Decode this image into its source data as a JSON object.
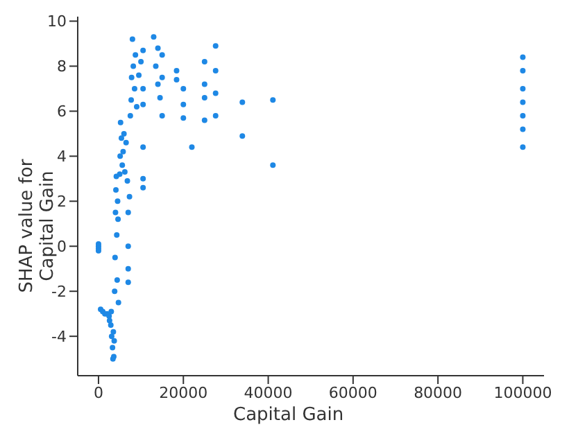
{
  "chart_data": {
    "type": "scatter",
    "xlabel": "Capital Gain",
    "ylabel": "SHAP value for\nCapital Gain",
    "marker": "circle",
    "grid": false,
    "legend": false,
    "xlim": [
      -4900,
      105000
    ],
    "ylim": [
      -5.75,
      10.2
    ],
    "xticks": [
      0,
      20000,
      40000,
      60000,
      80000,
      100000
    ],
    "yticks": [
      -4,
      -2,
      0,
      2,
      4,
      6,
      8,
      10
    ],
    "series": [
      {
        "color": "#1e88e5",
        "x": [
          0,
          0,
          0,
          0,
          500,
          1000,
          1500,
          2000,
          2500,
          2600,
          2900,
          3000,
          3100,
          3300,
          3400,
          3500,
          3600,
          3700,
          3800,
          3900,
          4000,
          4100,
          4200,
          4300,
          4400,
          4500,
          4600,
          4700,
          5000,
          5100,
          5200,
          5400,
          5600,
          5800,
          6000,
          6200,
          6500,
          6800,
          7000,
          7000,
          7000,
          7000,
          7300,
          7500,
          7700,
          7800,
          8000,
          8200,
          8500,
          8700,
          9000,
          9500,
          10000,
          10500,
          10500,
          10500,
          10500,
          10500,
          10500,
          13000,
          13500,
          14000,
          14000,
          14500,
          15000,
          15000,
          15000,
          18400,
          18400,
          20000,
          20000,
          20000,
          22000,
          25000,
          25000,
          25000,
          25000,
          27600,
          27600,
          27600,
          27600,
          33900,
          33900,
          41100,
          41100,
          99999,
          99999,
          99999,
          99999,
          99999,
          99999,
          99999
        ],
        "values": [
          0.1,
          0,
          -0.1,
          -0.2,
          -2.8,
          -2.9,
          -3.0,
          -3.0,
          -3.1,
          -3.3,
          -3.5,
          -2.9,
          -4.0,
          -4.5,
          -5.0,
          -3.8,
          -4.9,
          -4.2,
          -2.0,
          -0.5,
          1.5,
          2.5,
          3.1,
          0.5,
          -1.5,
          2.0,
          1.2,
          -2.5,
          3.2,
          4.0,
          5.5,
          4.8,
          3.6,
          4.2,
          5.0,
          3.3,
          4.6,
          2.9,
          1.5,
          0,
          -1.0,
          -1.6,
          2.2,
          5.8,
          6.5,
          7.5,
          9.2,
          8.0,
          7.0,
          8.5,
          6.2,
          7.6,
          8.2,
          8.7,
          7.0,
          6.3,
          4.4,
          3.0,
          2.6,
          9.3,
          8.0,
          7.2,
          8.8,
          6.6,
          8.5,
          7.5,
          5.8,
          7.8,
          7.4,
          7.0,
          6.3,
          5.7,
          4.4,
          8.2,
          7.2,
          6.6,
          5.6,
          8.9,
          7.8,
          6.8,
          5.8,
          6.4,
          4.9,
          6.5,
          3.6,
          8.4,
          7.8,
          7.0,
          6.4,
          5.8,
          5.2,
          4.4
        ]
      }
    ]
  }
}
